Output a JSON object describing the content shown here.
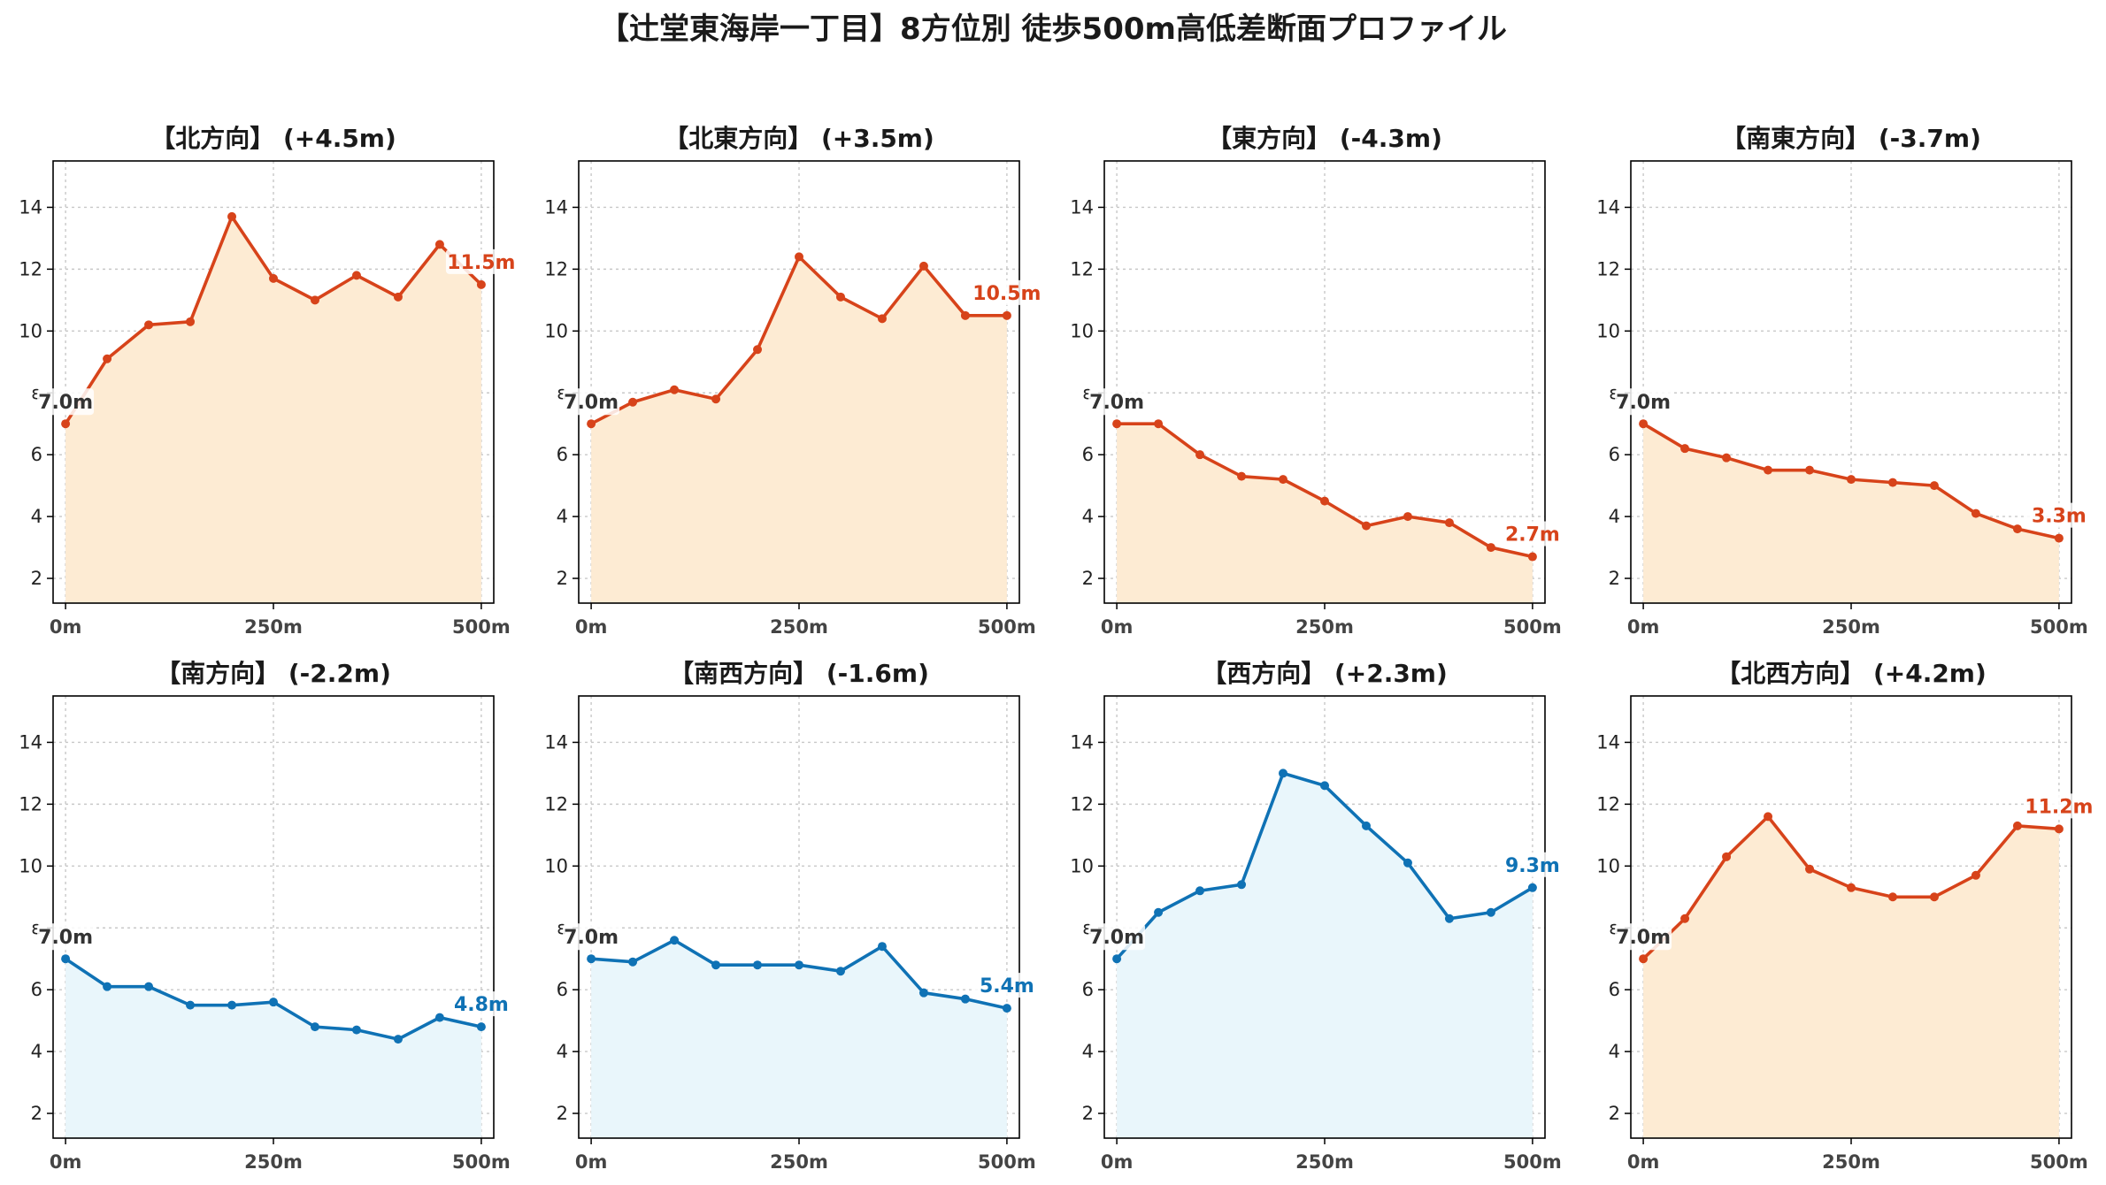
{
  "figure_title": "【辻堂東海岸一丁目】8方位別 徒歩500m高低差断面プロファイル",
  "colors": {
    "up_line": "#d7431a",
    "up_fill": "#fdebd3",
    "down_line": "#0f72b5",
    "down_fill": "#e9f6fb",
    "start_label": "#333333"
  },
  "chart_data": [
    {
      "type": "area",
      "title": "【北方向】 (+4.5m)",
      "trend": "up",
      "ylabel": "ε",
      "x": [
        0,
        50,
        100,
        150,
        200,
        250,
        300,
        350,
        400,
        450,
        500
      ],
      "series": [
        {
          "values": [
            7.0,
            9.1,
            10.2,
            10.3,
            13.7,
            11.7,
            11.0,
            11.8,
            11.1,
            12.8,
            11.5
          ]
        }
      ],
      "xticks": [
        0,
        250,
        500
      ],
      "xtick_labels": [
        "0m",
        "250m",
        "500m"
      ],
      "yticks": [
        2,
        4,
        6,
        8,
        10,
        12,
        14
      ],
      "ytick_labels": [
        "2",
        "4",
        "6",
        "",
        "10",
        "12",
        "14"
      ],
      "xlim": [
        -15,
        515
      ],
      "ylim": [
        1.2,
        15.5
      ],
      "grid": true,
      "start_label": "7.0m",
      "end_label": "11.5m"
    },
    {
      "type": "area",
      "title": "【北東方向】 (+3.5m)",
      "trend": "up",
      "ylabel": "ε",
      "x": [
        0,
        50,
        100,
        150,
        200,
        250,
        300,
        350,
        400,
        450,
        500
      ],
      "series": [
        {
          "values": [
            7.0,
            7.7,
            8.1,
            7.8,
            9.4,
            12.4,
            11.1,
            10.4,
            12.1,
            10.5,
            10.5
          ]
        }
      ],
      "xticks": [
        0,
        250,
        500
      ],
      "xtick_labels": [
        "0m",
        "250m",
        "500m"
      ],
      "yticks": [
        2,
        4,
        6,
        8,
        10,
        12,
        14
      ],
      "ytick_labels": [
        "2",
        "4",
        "6",
        "",
        "10",
        "12",
        "14"
      ],
      "xlim": [
        -15,
        515
      ],
      "ylim": [
        1.2,
        15.5
      ],
      "grid": true,
      "start_label": "7.0m",
      "end_label": "10.5m"
    },
    {
      "type": "area",
      "title": "【東方向】 (-4.3m)",
      "trend": "up",
      "ylabel": "ε",
      "x": [
        0,
        50,
        100,
        150,
        200,
        250,
        300,
        350,
        400,
        450,
        500
      ],
      "series": [
        {
          "values": [
            7.0,
            7.0,
            6.0,
            5.3,
            5.2,
            4.5,
            3.7,
            4.0,
            3.8,
            3.0,
            2.7
          ]
        }
      ],
      "xticks": [
        0,
        250,
        500
      ],
      "xtick_labels": [
        "0m",
        "250m",
        "500m"
      ],
      "yticks": [
        2,
        4,
        6,
        8,
        10,
        12,
        14
      ],
      "ytick_labels": [
        "2",
        "4",
        "6",
        "",
        "10",
        "12",
        "14"
      ],
      "xlim": [
        -15,
        515
      ],
      "ylim": [
        1.2,
        15.5
      ],
      "grid": true,
      "start_label": "7.0m",
      "end_label": "2.7m"
    },
    {
      "type": "area",
      "title": "【南東方向】 (-3.7m)",
      "trend": "up",
      "ylabel": "ε",
      "x": [
        0,
        50,
        100,
        150,
        200,
        250,
        300,
        350,
        400,
        450,
        500
      ],
      "series": [
        {
          "values": [
            7.0,
            6.2,
            5.9,
            5.5,
            5.5,
            5.2,
            5.1,
            5.0,
            4.1,
            3.6,
            3.3
          ]
        }
      ],
      "xticks": [
        0,
        250,
        500
      ],
      "xtick_labels": [
        "0m",
        "250m",
        "500m"
      ],
      "yticks": [
        2,
        4,
        6,
        8,
        10,
        12,
        14
      ],
      "ytick_labels": [
        "2",
        "4",
        "6",
        "",
        "10",
        "12",
        "14"
      ],
      "xlim": [
        -15,
        515
      ],
      "ylim": [
        1.2,
        15.5
      ],
      "grid": true,
      "start_label": "7.0m",
      "end_label": "3.3m"
    },
    {
      "type": "area",
      "title": "【南方向】 (-2.2m)",
      "trend": "down",
      "ylabel": "ε",
      "x": [
        0,
        50,
        100,
        150,
        200,
        250,
        300,
        350,
        400,
        450,
        500
      ],
      "series": [
        {
          "values": [
            7.0,
            6.1,
            6.1,
            5.5,
            5.5,
            5.6,
            4.8,
            4.7,
            4.4,
            5.1,
            4.8
          ]
        }
      ],
      "xticks": [
        0,
        250,
        500
      ],
      "xtick_labels": [
        "0m",
        "250m",
        "500m"
      ],
      "yticks": [
        2,
        4,
        6,
        8,
        10,
        12,
        14
      ],
      "ytick_labels": [
        "2",
        "4",
        "6",
        "",
        "10",
        "12",
        "14"
      ],
      "xlim": [
        -15,
        515
      ],
      "ylim": [
        1.2,
        15.5
      ],
      "grid": true,
      "start_label": "7.0m",
      "end_label": "4.8m"
    },
    {
      "type": "area",
      "title": "【南西方向】 (-1.6m)",
      "trend": "down",
      "ylabel": "ε",
      "x": [
        0,
        50,
        100,
        150,
        200,
        250,
        300,
        350,
        400,
        450,
        500
      ],
      "series": [
        {
          "values": [
            7.0,
            6.9,
            7.6,
            6.8,
            6.8,
            6.8,
            6.6,
            7.4,
            5.9,
            5.7,
            5.4
          ]
        }
      ],
      "xticks": [
        0,
        250,
        500
      ],
      "xtick_labels": [
        "0m",
        "250m",
        "500m"
      ],
      "yticks": [
        2,
        4,
        6,
        8,
        10,
        12,
        14
      ],
      "ytick_labels": [
        "2",
        "4",
        "6",
        "",
        "10",
        "12",
        "14"
      ],
      "xlim": [
        -15,
        515
      ],
      "ylim": [
        1.2,
        15.5
      ],
      "grid": true,
      "start_label": "7.0m",
      "end_label": "5.4m"
    },
    {
      "type": "area",
      "title": "【西方向】 (+2.3m)",
      "trend": "down",
      "ylabel": "ε",
      "x": [
        0,
        50,
        100,
        150,
        200,
        250,
        300,
        350,
        400,
        450,
        500
      ],
      "series": [
        {
          "values": [
            7.0,
            8.5,
            9.2,
            9.4,
            13.0,
            12.6,
            11.3,
            10.1,
            8.3,
            8.5,
            9.3
          ]
        }
      ],
      "xticks": [
        0,
        250,
        500
      ],
      "xtick_labels": [
        "0m",
        "250m",
        "500m"
      ],
      "yticks": [
        2,
        4,
        6,
        8,
        10,
        12,
        14
      ],
      "ytick_labels": [
        "2",
        "4",
        "6",
        "",
        "10",
        "12",
        "14"
      ],
      "xlim": [
        -15,
        515
      ],
      "ylim": [
        1.2,
        15.5
      ],
      "grid": true,
      "start_label": "7.0m",
      "end_label": "9.3m"
    },
    {
      "type": "area",
      "title": "【北西方向】 (+4.2m)",
      "trend": "up",
      "ylabel": "ε",
      "x": [
        0,
        50,
        100,
        150,
        200,
        250,
        300,
        350,
        400,
        450,
        500
      ],
      "series": [
        {
          "values": [
            7.0,
            8.3,
            10.3,
            11.6,
            9.9,
            9.3,
            9.0,
            9.0,
            9.7,
            11.3,
            11.2
          ]
        }
      ],
      "xticks": [
        0,
        250,
        500
      ],
      "xtick_labels": [
        "0m",
        "250m",
        "500m"
      ],
      "yticks": [
        2,
        4,
        6,
        8,
        10,
        12,
        14
      ],
      "ytick_labels": [
        "2",
        "4",
        "6",
        "",
        "10",
        "12",
        "14"
      ],
      "xlim": [
        -15,
        515
      ],
      "ylim": [
        1.2,
        15.5
      ],
      "grid": true,
      "start_label": "7.0m",
      "end_label": "11.2m"
    }
  ]
}
